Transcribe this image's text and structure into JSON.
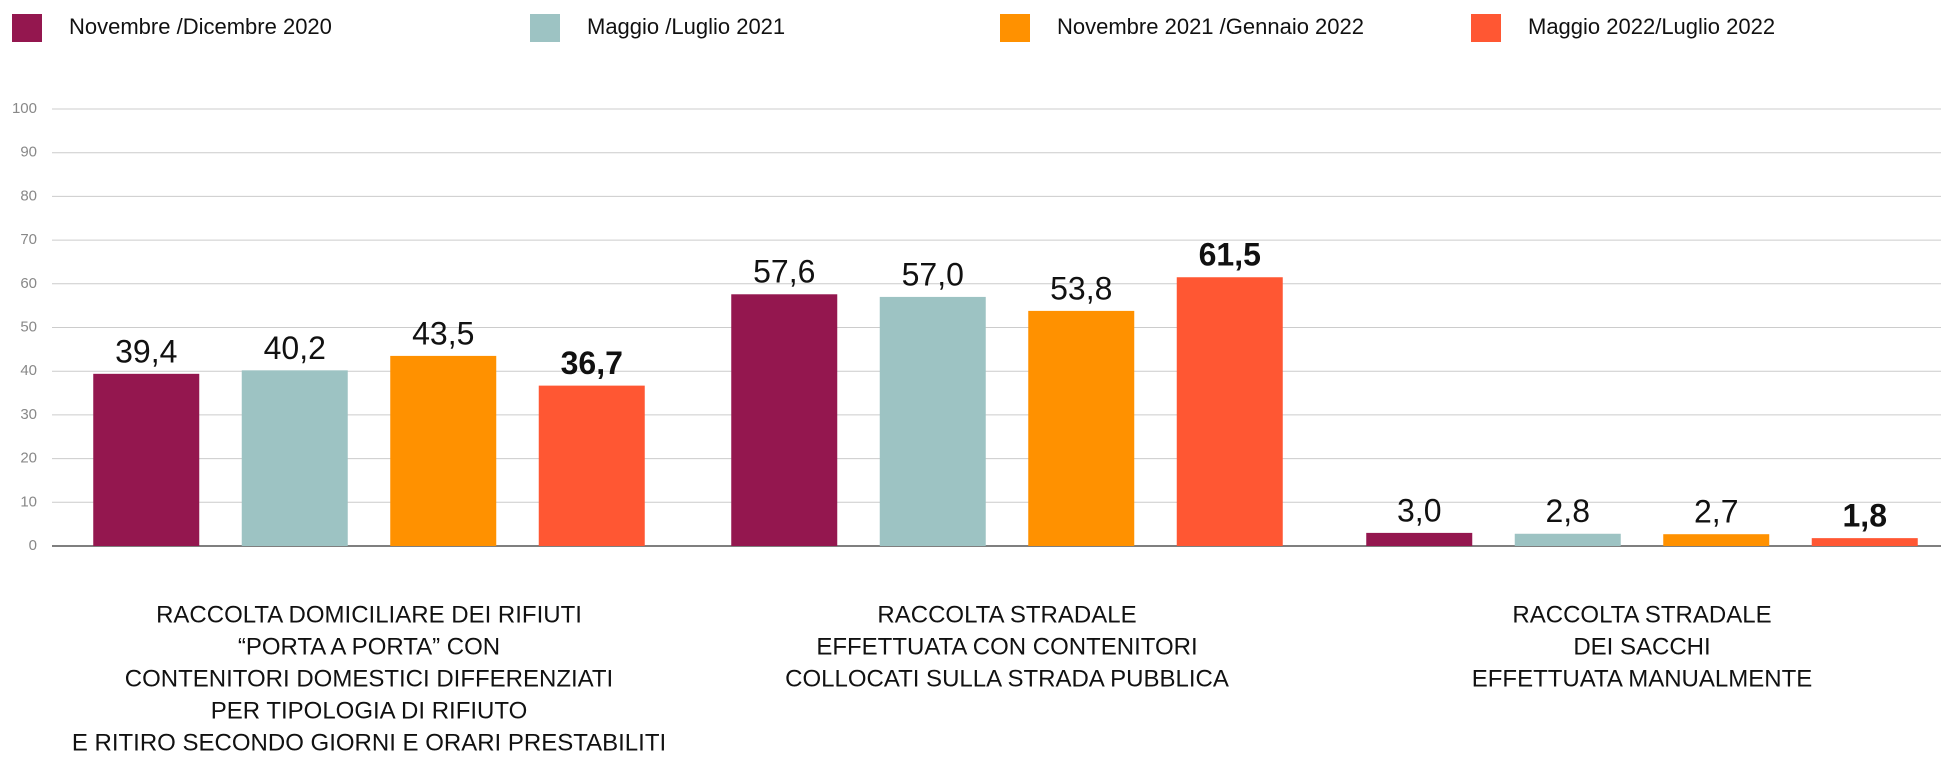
{
  "chart_data": {
    "type": "bar",
    "categories": [
      [
        "RACCOLTA DOMICILIARE DEI RIFIUTI",
        "“PORTA A PORTA” CON",
        "CONTENITORI DOMESTICI DIFFERENZIATI",
        "PER TIPOLOGIA DI RIFIUTO",
        "E RITIRO SECONDO GIORNI E ORARI PRESTABILITI"
      ],
      [
        "RACCOLTA STRADALE",
        "EFFETTUATA CON CONTENITORI",
        "COLLOCATI SULLA STRADA PUBBLICA"
      ],
      [
        "RACCOLTA STRADALE",
        "DEI SACCHI",
        "EFFETTUATA MANUALMENTE"
      ]
    ],
    "series": [
      {
        "name": "Novembre /Dicembre 2020",
        "color": "#94174f",
        "values": [
          39.4,
          57.6,
          3.0
        ],
        "value_labels": [
          "39,4",
          "57,6",
          "3,0"
        ]
      },
      {
        "name": "Maggio /Luglio 2021",
        "color": "#9dc3c3",
        "values": [
          40.2,
          57.0,
          2.8
        ],
        "value_labels": [
          "40,2",
          "57,0",
          "2,8"
        ]
      },
      {
        "name": "Novembre 2021 /Gennaio 2022",
        "color": "#ff9100",
        "values": [
          43.5,
          53.8,
          2.7
        ],
        "value_labels": [
          "43,5",
          "53,8",
          "2,7"
        ]
      },
      {
        "name": "Maggio 2022/Luglio 2022",
        "color": "#ff5733",
        "values": [
          36.7,
          61.5,
          1.8
        ],
        "value_labels": [
          "36,7",
          "61,5",
          "1,8"
        ],
        "label_weight": "bold"
      }
    ],
    "ylim": [
      0,
      100
    ],
    "yticks": [
      0,
      10,
      20,
      30,
      40,
      50,
      60,
      70,
      80,
      90,
      100
    ],
    "grid": true,
    "legend": "top"
  }
}
